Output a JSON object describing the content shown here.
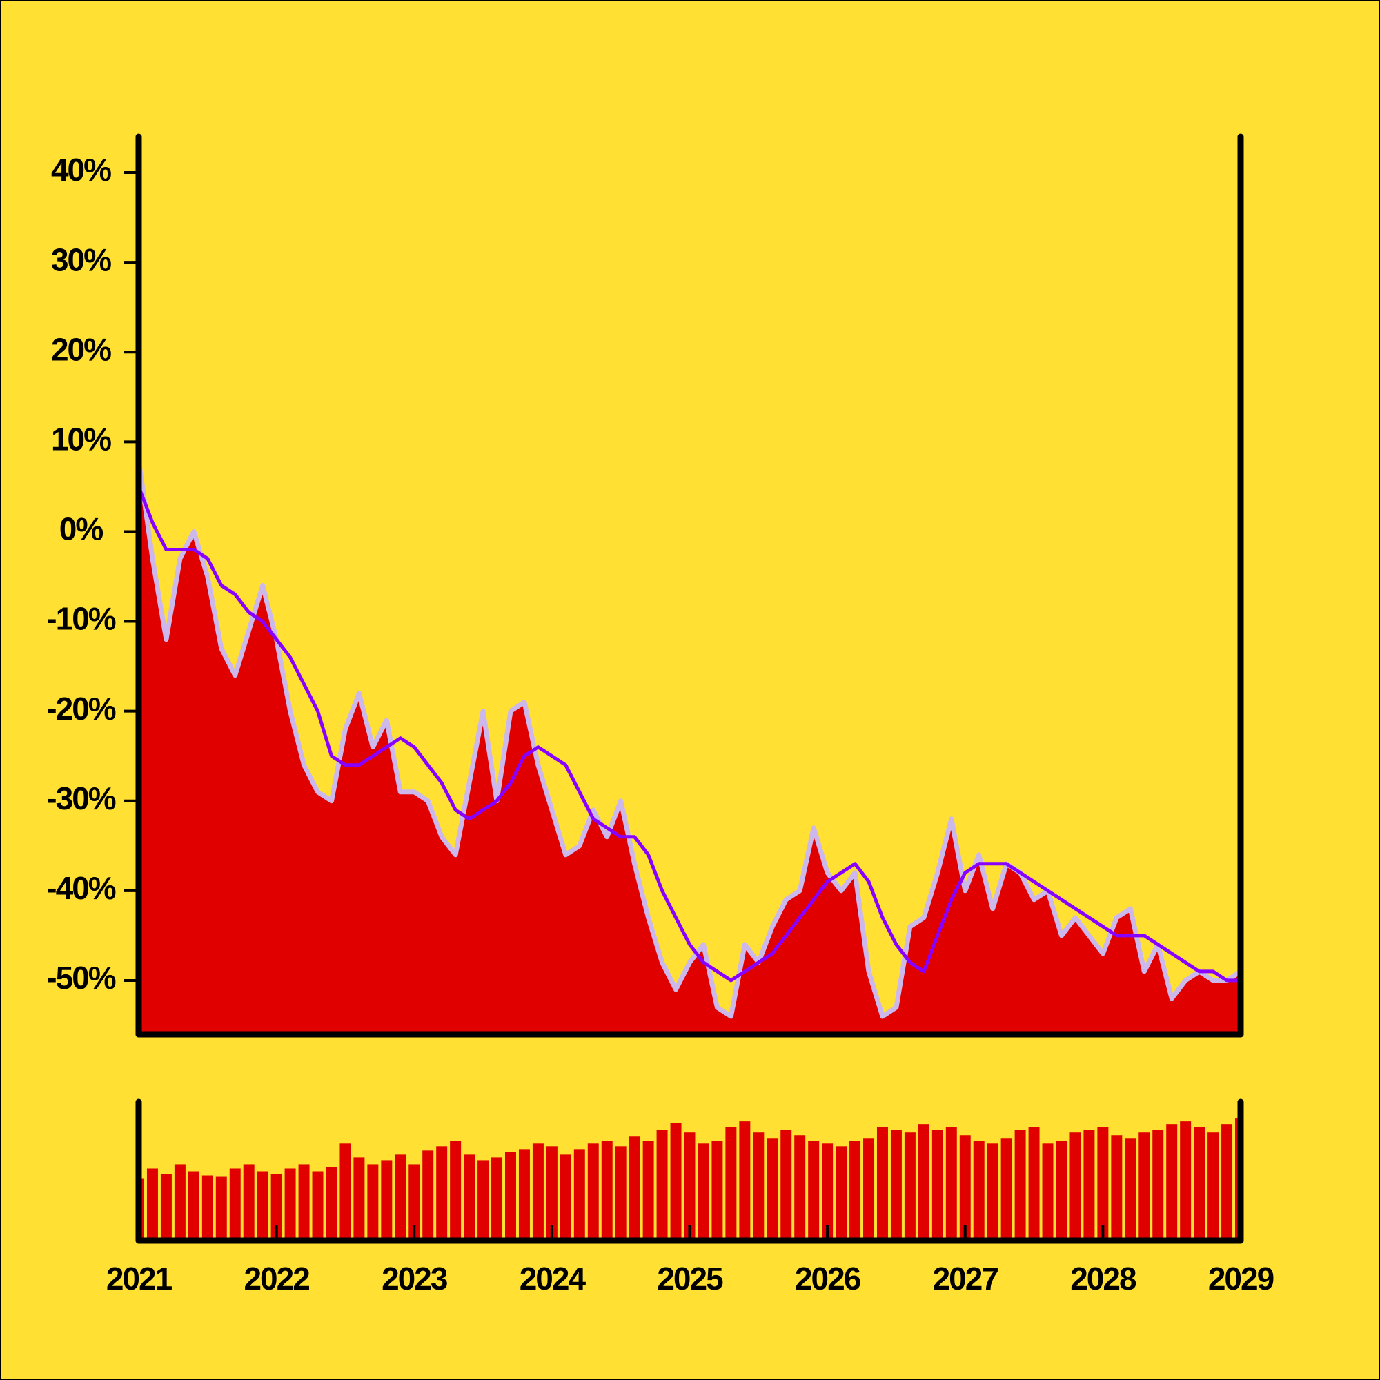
{
  "chart_data": [
    {
      "type": "area",
      "x": [
        2021.0,
        2021.1,
        2021.2,
        2021.3,
        2021.4,
        2021.5,
        2021.6,
        2021.7,
        2021.8,
        2021.9,
        2022.0,
        2022.1,
        2022.2,
        2022.3,
        2022.4,
        2022.5,
        2022.6,
        2022.7,
        2022.8,
        2022.9,
        2023.0,
        2023.1,
        2023.2,
        2023.3,
        2023.4,
        2023.5,
        2023.6,
        2023.7,
        2023.8,
        2023.9,
        2024.0,
        2024.1,
        2024.2,
        2024.3,
        2024.4,
        2024.5,
        2024.6,
        2024.7,
        2024.8,
        2024.9,
        2025.0,
        2025.1,
        2025.2,
        2025.3,
        2025.4,
        2025.5,
        2025.6,
        2025.7,
        2025.8,
        2025.9,
        2026.0,
        2026.1,
        2026.2,
        2026.3,
        2026.4,
        2026.5,
        2026.6,
        2026.7,
        2026.8,
        2026.9,
        2027.0,
        2027.1,
        2027.2,
        2027.3,
        2027.4,
        2027.5,
        2027.6,
        2027.7,
        2027.8,
        2027.9,
        2028.0,
        2028.1,
        2028.2,
        2028.3,
        2028.4,
        2028.5,
        2028.6,
        2028.7,
        2028.8,
        2028.9,
        2029.0
      ],
      "series": [
        {
          "type": "area",
          "color": "#e00000",
          "outline": "#cdb8ec",
          "values": [
            8,
            -3,
            -12,
            -3,
            0,
            -5,
            -13,
            -16,
            -11,
            -6,
            -12,
            -20,
            -26,
            -29,
            -30,
            -22,
            -18,
            -24,
            -21,
            -29,
            -29,
            -30,
            -34,
            -36,
            -28,
            -20,
            -30,
            -20,
            -19,
            -26,
            -31,
            -36,
            -35,
            -31,
            -34,
            -30,
            -37,
            -43,
            -48,
            -51,
            -48,
            -46,
            -53,
            -54,
            -46,
            -48,
            -44,
            -41,
            -40,
            -33,
            -38,
            -40,
            -38,
            -49,
            -54,
            -53,
            -44,
            -43,
            -38,
            -32,
            -40,
            -36,
            -42,
            -37,
            -38,
            -41,
            -40,
            -45,
            -43,
            -45,
            -47,
            -43,
            -42,
            -49,
            -46,
            -52,
            -50,
            -49,
            -50,
            -50,
            -49
          ]
        },
        {
          "type": "line",
          "color": "#8800ff",
          "values": [
            5,
            1,
            -2,
            -2,
            -2,
            -3,
            -6,
            -7,
            -9,
            -10,
            -12,
            -14,
            -17,
            -20,
            -25,
            -26,
            -26,
            -25,
            -24,
            -23,
            -24,
            -26,
            -28,
            -31,
            -32,
            -31,
            -30,
            -28,
            -25,
            -24,
            -25,
            -26,
            -29,
            -32,
            -33,
            -34,
            -34,
            -36,
            -40,
            -43,
            -46,
            -48,
            -49,
            -50,
            -49,
            -48,
            -47,
            -45,
            -43,
            -41,
            -39,
            -38,
            -37,
            -39,
            -43,
            -46,
            -48,
            -49,
            -45,
            -41,
            -38,
            -37,
            -37,
            -37,
            -38,
            -39,
            -40,
            -41,
            -42,
            -43,
            -44,
            -45,
            -45,
            -45,
            -46,
            -47,
            -48,
            -49,
            -49,
            -50,
            -50
          ]
        }
      ],
      "xlim": [
        2021,
        2029
      ],
      "ylim": [
        -56,
        44
      ],
      "yticks": [
        {
          "value": 40,
          "label": "40%"
        },
        {
          "value": 30,
          "label": "30%"
        },
        {
          "value": 20,
          "label": "20%"
        },
        {
          "value": 10,
          "label": "10%"
        },
        {
          "value": 0,
          "label": "0%"
        },
        {
          "value": -10,
          "label": "-10%"
        },
        {
          "value": -20,
          "label": "-20%"
        },
        {
          "value": -30,
          "label": "-30%"
        },
        {
          "value": -40,
          "label": "-40%"
        },
        {
          "value": -50,
          "label": "-50%"
        }
      ]
    },
    {
      "type": "bar",
      "x": [
        2021.0,
        2021.1,
        2021.2,
        2021.3,
        2021.4,
        2021.5,
        2021.6,
        2021.7,
        2021.8,
        2021.9,
        2022.0,
        2022.1,
        2022.2,
        2022.3,
        2022.4,
        2022.5,
        2022.6,
        2022.7,
        2022.8,
        2022.9,
        2023.0,
        2023.1,
        2023.2,
        2023.3,
        2023.4,
        2023.5,
        2023.6,
        2023.7,
        2023.8,
        2023.9,
        2024.0,
        2024.1,
        2024.2,
        2024.3,
        2024.4,
        2024.5,
        2024.6,
        2024.7,
        2024.8,
        2024.9,
        2025.0,
        2025.1,
        2025.2,
        2025.3,
        2025.4,
        2025.5,
        2025.6,
        2025.7,
        2025.8,
        2025.9,
        2026.0,
        2026.1,
        2026.2,
        2026.3,
        2026.4,
        2026.5,
        2026.6,
        2026.7,
        2026.8,
        2026.9,
        2027.0,
        2027.1,
        2027.2,
        2027.3,
        2027.4,
        2027.5,
        2027.6,
        2027.7,
        2027.8,
        2027.9,
        2028.0,
        2028.1,
        2028.2,
        2028.3,
        2028.4,
        2028.5,
        2028.6,
        2028.7,
        2028.8,
        2028.9,
        2029.0
      ],
      "values": [
        45,
        52,
        48,
        55,
        50,
        47,
        46,
        52,
        55,
        50,
        48,
        52,
        55,
        50,
        53,
        70,
        60,
        55,
        58,
        62,
        55,
        65,
        68,
        72,
        62,
        58,
        60,
        64,
        66,
        70,
        68,
        62,
        66,
        70,
        72,
        68,
        75,
        72,
        80,
        85,
        78,
        70,
        72,
        82,
        86,
        78,
        74,
        80,
        76,
        72,
        70,
        68,
        72,
        74,
        82,
        80,
        78,
        84,
        80,
        82,
        76,
        72,
        70,
        74,
        80,
        82,
        70,
        72,
        78,
        80,
        82,
        76,
        74,
        78,
        80,
        84,
        86,
        82,
        78,
        84,
        88
      ],
      "color": "#e00000",
      "xlim": [
        2021,
        2029
      ],
      "ylim": [
        0,
        100
      ],
      "xticks": [
        2021,
        2022,
        2023,
        2024,
        2025,
        2026,
        2027,
        2028,
        2029
      ]
    }
  ]
}
